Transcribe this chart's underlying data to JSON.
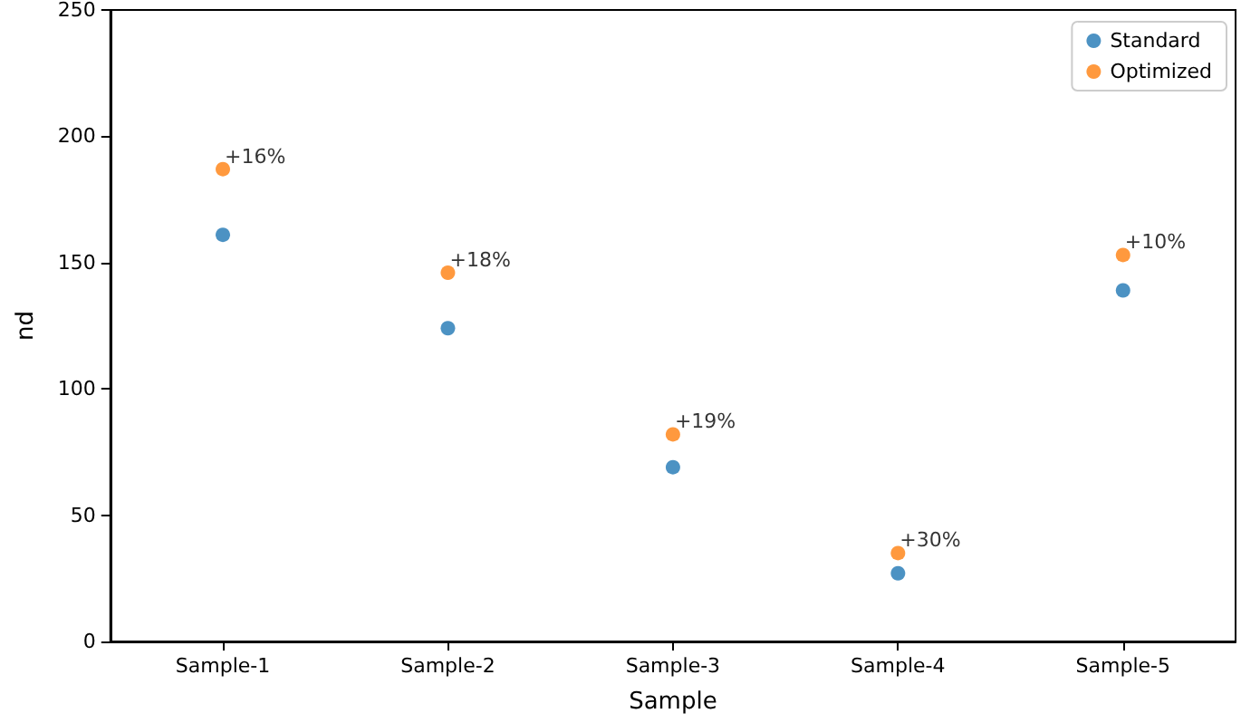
{
  "chart_data": {
    "type": "scatter",
    "xlabel": "Sample",
    "ylabel": "nd",
    "categories": [
      "Sample-1",
      "Sample-2",
      "Sample-3",
      "Sample-4",
      "Sample-5"
    ],
    "series": [
      {
        "name": "Standard",
        "color": "#1f77b4",
        "values": [
          161,
          124,
          69,
          27,
          139
        ]
      },
      {
        "name": "Optimized",
        "color": "#ff7f0e",
        "values": [
          187,
          146,
          82,
          35,
          153
        ]
      }
    ],
    "annotations": [
      {
        "text": "+16%",
        "x": "Sample-1",
        "y": 187
      },
      {
        "text": "+18%",
        "x": "Sample-2",
        "y": 146
      },
      {
        "text": "+19%",
        "x": "Sample-3",
        "y": 82
      },
      {
        "text": "+30%",
        "x": "Sample-4",
        "y": 35
      },
      {
        "text": "+10%",
        "x": "Sample-5",
        "y": 153
      }
    ],
    "ylim": [
      0,
      250
    ],
    "yticks": [
      0,
      50,
      100,
      150,
      200,
      250
    ],
    "grid": false,
    "legend": "top right",
    "marker": "circle"
  }
}
